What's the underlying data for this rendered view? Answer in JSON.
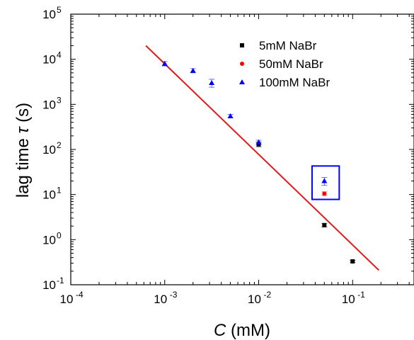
{
  "chart_data": {
    "type": "scatter",
    "xlabel": {
      "symbol": "C",
      "unit": " (mM)"
    },
    "ylabel": {
      "text": "lag time ",
      "symbol": "τ",
      "unit": " (s)"
    },
    "x_scale": "log",
    "y_scale": "log",
    "xlim": [
      0.0001,
      0.45
    ],
    "ylim": [
      0.1,
      100000
    ],
    "x_ticks": [
      {
        "value": 0.0001,
        "base": "10",
        "exp": "-4"
      },
      {
        "value": 0.001,
        "base": "10",
        "exp": "-3"
      },
      {
        "value": 0.01,
        "base": "10",
        "exp": "-2"
      },
      {
        "value": 0.1,
        "base": "10",
        "exp": "-1"
      }
    ],
    "y_ticks": [
      {
        "value": 0.1,
        "base": "10",
        "exp": "-1"
      },
      {
        "value": 1,
        "base": "10",
        "exp": "0"
      },
      {
        "value": 10,
        "base": "10",
        "exp": "1"
      },
      {
        "value": 100,
        "base": "10",
        "exp": "2"
      },
      {
        "value": 1000,
        "base": "10",
        "exp": "3"
      },
      {
        "value": 10000,
        "base": "10",
        "exp": "4"
      },
      {
        "value": 100000,
        "base": "10",
        "exp": "5"
      }
    ],
    "series": [
      {
        "name": "5mM NaBr",
        "marker": "square",
        "color": "#000000",
        "points": [
          {
            "x": 0.01,
            "y": 130,
            "err": 15
          },
          {
            "x": 0.05,
            "y": 2.1,
            "err": 0.2
          },
          {
            "x": 0.1,
            "y": 0.33,
            "err": 0.02
          }
        ]
      },
      {
        "name": "50mM NaBr",
        "marker": "circle",
        "color": "#ff0000",
        "points": [
          {
            "x": 0.05,
            "y": 10.5,
            "err": 1.0
          }
        ]
      },
      {
        "name": "100mM NaBr",
        "marker": "triangle",
        "color": "#0000ff",
        "points": [
          {
            "x": 0.001,
            "y": 8000,
            "err": 900
          },
          {
            "x": 0.002,
            "y": 5600,
            "err": 600
          },
          {
            "x": 0.00316,
            "y": 3000,
            "err": 600
          },
          {
            "x": 0.005,
            "y": 550,
            "err": 50
          },
          {
            "x": 0.01,
            "y": 145,
            "err": 15
          },
          {
            "x": 0.05,
            "y": 20,
            "err": 4
          }
        ]
      }
    ],
    "fit_line": {
      "color": "#e31a1c",
      "x": [
        0.00063,
        0.19
      ],
      "y": [
        20000,
        0.21
      ]
    },
    "highlight_box": {
      "color": "#0000ff",
      "x": [
        0.037,
        0.072
      ],
      "y": [
        7.8,
        43
      ]
    },
    "legend_position": "top-right",
    "grid": false
  }
}
